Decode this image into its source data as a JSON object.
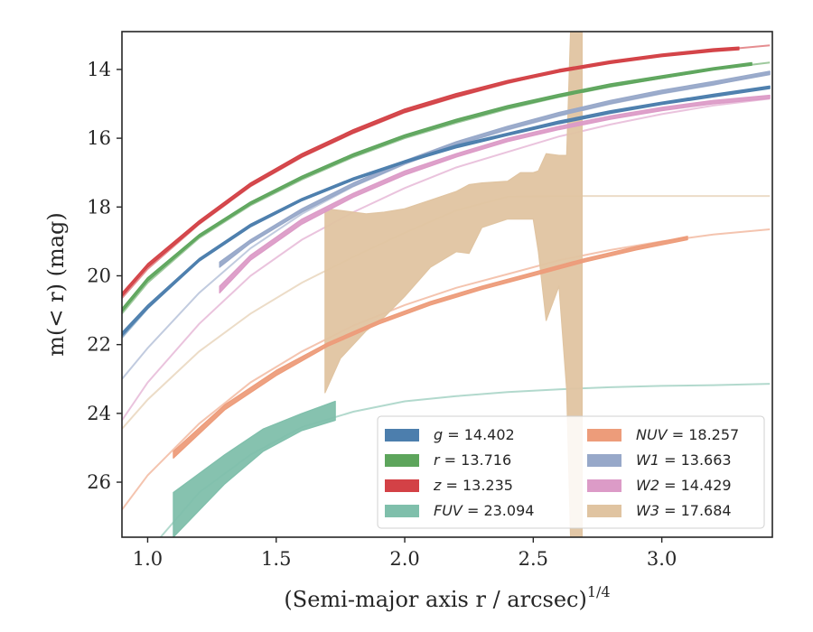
{
  "chart_data": {
    "type": "line",
    "xlabel": "(Semi-major axis r / arcsec)",
    "xlabel_exponent": "1/4",
    "ylabel": "m(< r) (mag)",
    "xlim": [
      0.9,
      3.43
    ],
    "ylim": [
      27.6,
      12.9
    ],
    "y_inverted": true,
    "xticks": [
      1.0,
      1.5,
      2.0,
      2.5,
      3.0
    ],
    "xtick_labels": [
      "1.0",
      "1.5",
      "2.0",
      "2.5",
      "3.0"
    ],
    "yticks": [
      14,
      16,
      18,
      20,
      22,
      24,
      26
    ],
    "ytick_labels": [
      "14",
      "16",
      "18",
      "20",
      "22",
      "24",
      "26"
    ],
    "grid": false,
    "legend_position": "lower-right",
    "series": [
      {
        "name": "g",
        "label_value": "14.402",
        "color": "#4c7ead",
        "model_x": [
          0.9,
          1.0,
          1.2,
          1.4,
          1.6,
          1.8,
          2.0,
          2.2,
          2.4,
          2.6,
          2.8,
          3.0,
          3.2,
          3.42
        ],
        "model_y": [
          21.8,
          20.95,
          19.55,
          18.55,
          17.8,
          17.2,
          16.7,
          16.25,
          15.9,
          15.55,
          15.25,
          15.0,
          14.75,
          14.5
        ],
        "obs_x": [
          0.9,
          1.0,
          1.2,
          1.4,
          1.6,
          1.8,
          2.0,
          2.2,
          2.4,
          2.6,
          2.8,
          3.0,
          3.2,
          3.42
        ],
        "obs_lo": [
          21.65,
          20.85,
          19.5,
          18.5,
          17.75,
          17.15,
          16.65,
          16.2,
          15.85,
          15.5,
          15.2,
          14.95,
          14.72,
          14.48
        ],
        "obs_hi": [
          21.75,
          20.95,
          19.58,
          18.58,
          17.82,
          17.22,
          16.72,
          16.28,
          15.92,
          15.58,
          15.28,
          15.02,
          14.8,
          14.56
        ]
      },
      {
        "name": "r",
        "label_value": "13.716",
        "color": "#5da55c",
        "model_x": [
          0.9,
          1.0,
          1.2,
          1.4,
          1.6,
          1.8,
          2.0,
          2.2,
          2.4,
          2.6,
          2.8,
          3.0,
          3.2,
          3.42
        ],
        "model_y": [
          21.1,
          20.2,
          18.9,
          17.95,
          17.2,
          16.55,
          16.0,
          15.55,
          15.15,
          14.8,
          14.5,
          14.25,
          14.0,
          13.8
        ],
        "obs_x": [
          0.9,
          1.0,
          1.2,
          1.4,
          1.6,
          1.8,
          2.0,
          2.2,
          2.4,
          2.6,
          2.8,
          3.0,
          3.2,
          3.35
        ],
        "obs_lo": [
          20.95,
          20.05,
          18.8,
          17.85,
          17.1,
          16.45,
          15.9,
          15.45,
          15.05,
          14.72,
          14.42,
          14.18,
          13.95,
          13.8
        ],
        "obs_hi": [
          21.05,
          20.15,
          18.88,
          17.93,
          17.18,
          16.53,
          15.98,
          15.53,
          15.13,
          14.8,
          14.5,
          14.26,
          14.02,
          13.88
        ]
      },
      {
        "name": "z",
        "label_value": "13.235",
        "color": "#d34146",
        "model_x": [
          0.9,
          1.0,
          1.2,
          1.4,
          1.6,
          1.8,
          2.0,
          2.2,
          2.4,
          2.6,
          2.8,
          3.0,
          3.2,
          3.42
        ],
        "model_y": [
          20.65,
          19.8,
          18.5,
          17.4,
          16.55,
          15.85,
          15.25,
          14.8,
          14.4,
          14.05,
          13.8,
          13.6,
          13.45,
          13.3
        ],
        "obs_x": [
          0.9,
          1.0,
          1.2,
          1.4,
          1.6,
          1.8,
          2.0,
          2.2,
          2.4,
          2.6,
          2.8,
          3.0,
          3.2,
          3.3
        ],
        "obs_lo": [
          20.5,
          19.65,
          18.4,
          17.3,
          16.45,
          15.75,
          15.15,
          14.7,
          14.32,
          14.0,
          13.75,
          13.55,
          13.4,
          13.35
        ],
        "obs_hi": [
          20.6,
          19.75,
          18.5,
          17.4,
          16.55,
          15.85,
          15.25,
          14.8,
          14.4,
          14.08,
          13.83,
          13.63,
          13.48,
          13.43
        ]
      },
      {
        "name": "FUV",
        "label_value": "23.094",
        "color": "#7fbfab",
        "model_x": [
          1.05,
          1.2,
          1.4,
          1.6,
          1.8,
          2.0,
          2.2,
          2.4,
          2.6,
          2.8,
          3.0,
          3.2,
          3.42
        ],
        "model_y": [
          27.6,
          26.3,
          25.2,
          24.4,
          23.95,
          23.65,
          23.5,
          23.38,
          23.3,
          23.24,
          23.2,
          23.18,
          23.14
        ],
        "obs_x": [
          1.1,
          1.3,
          1.45,
          1.6,
          1.73
        ],
        "obs_lo": [
          26.3,
          25.2,
          24.45,
          24.0,
          23.65
        ],
        "obs_hi": [
          27.6,
          26.05,
          25.1,
          24.5,
          24.2
        ]
      },
      {
        "name": "NUV",
        "label_value": "18.257",
        "color": "#ed9c7a",
        "model_x": [
          0.9,
          1.0,
          1.2,
          1.4,
          1.6,
          1.8,
          2.0,
          2.2,
          2.4,
          2.6,
          2.8,
          3.0,
          3.2,
          3.42
        ],
        "model_y": [
          26.8,
          25.8,
          24.3,
          23.1,
          22.2,
          21.45,
          20.85,
          20.35,
          19.95,
          19.55,
          19.25,
          19.0,
          18.8,
          18.65
        ],
        "obs_x": [
          1.1,
          1.3,
          1.5,
          1.7,
          1.9,
          2.1,
          2.3,
          2.5,
          2.7,
          2.9,
          3.1
        ],
        "obs_lo": [
          25.1,
          23.75,
          22.75,
          21.95,
          21.3,
          20.75,
          20.3,
          19.9,
          19.5,
          19.15,
          18.85
        ],
        "obs_hi": [
          25.3,
          23.9,
          22.9,
          22.05,
          21.4,
          20.85,
          20.4,
          20.0,
          19.6,
          19.25,
          18.95
        ]
      },
      {
        "name": "W1",
        "label_value": "13.663",
        "color": "#97a8c9",
        "model_x": [
          0.9,
          1.0,
          1.2,
          1.4,
          1.6,
          1.8,
          2.0,
          2.2,
          2.4,
          2.6,
          2.8,
          3.0,
          3.2,
          3.42
        ],
        "model_y": [
          23.0,
          22.1,
          20.5,
          19.2,
          18.2,
          17.4,
          16.75,
          16.2,
          15.75,
          15.35,
          15.0,
          14.7,
          14.45,
          14.1
        ],
        "obs_x": [
          1.28,
          1.4,
          1.6,
          1.8,
          2.0,
          2.2,
          2.4,
          2.6,
          2.8,
          3.0,
          3.2,
          3.42
        ],
        "obs_lo": [
          19.6,
          18.95,
          18.05,
          17.3,
          16.65,
          16.1,
          15.65,
          15.25,
          14.9,
          14.6,
          14.35,
          14.05
        ],
        "obs_hi": [
          19.75,
          19.05,
          18.15,
          17.4,
          16.75,
          16.2,
          15.75,
          15.35,
          15.0,
          14.7,
          14.45,
          14.15
        ]
      },
      {
        "name": "W2",
        "label_value": "14.429",
        "color": "#dc9bc7",
        "model_x": [
          0.9,
          1.0,
          1.2,
          1.4,
          1.6,
          1.8,
          2.0,
          2.2,
          2.4,
          2.6,
          2.8,
          3.0,
          3.2,
          3.42
        ],
        "model_y": [
          24.2,
          23.1,
          21.4,
          20.0,
          18.95,
          18.15,
          17.45,
          16.85,
          16.4,
          15.95,
          15.6,
          15.3,
          15.05,
          14.85
        ],
        "obs_x": [
          1.28,
          1.4,
          1.6,
          1.8,
          2.0,
          2.2,
          2.4,
          2.6,
          2.8,
          3.0,
          3.2,
          3.42
        ],
        "obs_lo": [
          20.3,
          19.4,
          18.35,
          17.6,
          16.95,
          16.45,
          16.0,
          15.65,
          15.35,
          15.1,
          14.9,
          14.75
        ],
        "obs_hi": [
          20.5,
          19.55,
          18.5,
          17.72,
          17.07,
          16.55,
          16.1,
          15.75,
          15.45,
          15.2,
          15.0,
          14.85
        ]
      },
      {
        "name": "W3",
        "label_value": "17.684",
        "color": "#e0c4a1",
        "model_x": [
          0.9,
          1.0,
          1.2,
          1.4,
          1.6,
          1.8,
          2.0,
          2.2,
          2.4,
          2.6,
          2.8,
          3.0,
          3.2,
          3.42
        ],
        "model_y": [
          24.45,
          23.6,
          22.2,
          21.1,
          20.2,
          19.45,
          18.75,
          18.1,
          17.7,
          17.68,
          17.68,
          17.68,
          17.68,
          17.68
        ],
        "obs_x": [
          1.69,
          1.75,
          1.85,
          1.92,
          2.0,
          2.1,
          2.2,
          2.25,
          2.3,
          2.4,
          2.45,
          2.5,
          2.52,
          2.55,
          2.6,
          2.63,
          2.645,
          2.69
        ],
        "obs_lo": [
          18.05,
          18.1,
          18.2,
          18.15,
          18.05,
          17.8,
          17.55,
          17.35,
          17.3,
          17.25,
          17.0,
          17.0,
          16.95,
          16.45,
          16.5,
          16.5,
          12.9,
          12.9
        ],
        "obs_hi": [
          23.4,
          22.4,
          21.6,
          21.2,
          20.6,
          19.75,
          19.3,
          19.35,
          18.6,
          18.35,
          18.35,
          18.35,
          19.3,
          21.3,
          20.3,
          23.3,
          27.6,
          27.6
        ]
      }
    ]
  }
}
